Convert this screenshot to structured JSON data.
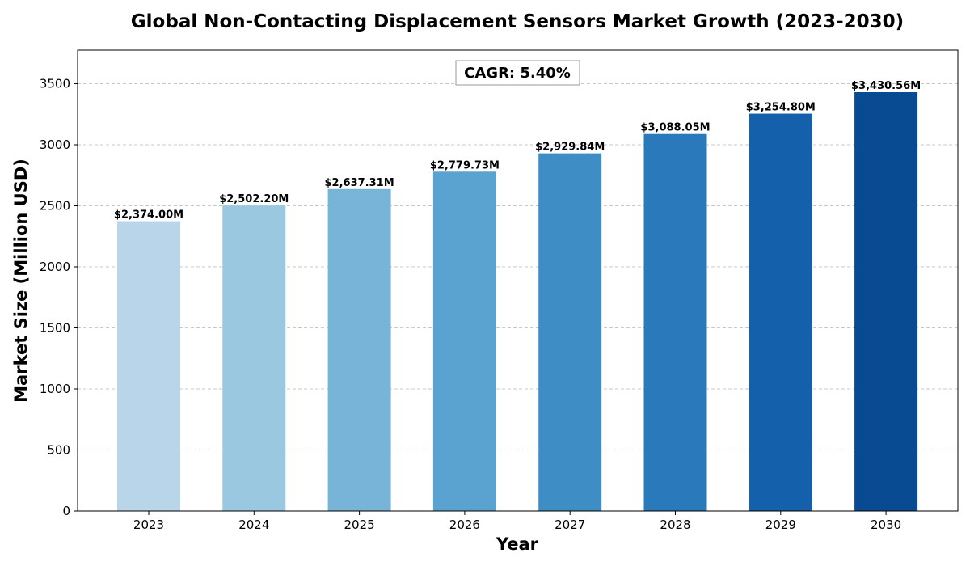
{
  "chart_data": {
    "type": "bar",
    "title": "Global Non-Contacting Displacement Sensors Market Growth (2023-2030)",
    "xlabel": "Year",
    "ylabel": "Market Size (Million USD)",
    "categories": [
      "2023",
      "2024",
      "2025",
      "2026",
      "2027",
      "2028",
      "2029",
      "2030"
    ],
    "values": [
      2374.0,
      2502.2,
      2637.31,
      2779.73,
      2929.84,
      3088.05,
      3254.8,
      3430.56
    ],
    "data_labels": [
      "$2,374.00M",
      "$2,502.20M",
      "$2,637.31M",
      "$2,779.73M",
      "$2,929.84M",
      "$3,088.05M",
      "$3,254.80M",
      "$3,430.56M"
    ],
    "bar_colors": [
      "#b9d5ea",
      "#9ac8e0",
      "#77b4d8",
      "#5aa2cf",
      "#3f8dc5",
      "#2a79bb",
      "#1460aa",
      "#084b92"
    ],
    "ylim": [
      0,
      3775
    ],
    "yticks": [
      0,
      500,
      1000,
      1500,
      2000,
      2500,
      3000,
      3500
    ],
    "grid": true,
    "annotation": "CAGR: 5.40%"
  }
}
